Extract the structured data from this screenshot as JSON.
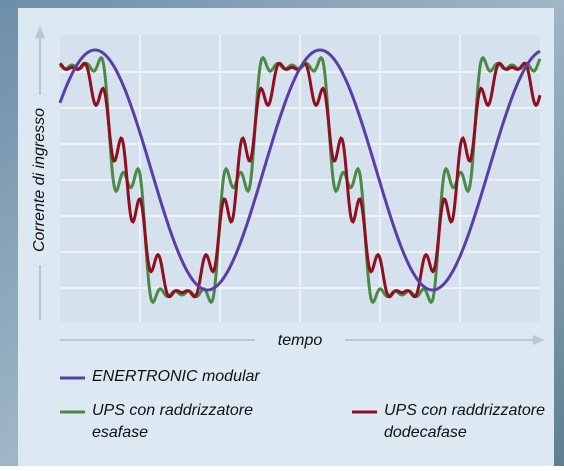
{
  "axes": {
    "x_label": "tempo",
    "y_label": "Corrente di ingresso"
  },
  "legend": [
    {
      "lines": [
        "ENERTRONIC modular"
      ],
      "color": "#5a3ea6"
    },
    {
      "lines": [
        "UPS con raddrizzatore",
        "esafase"
      ],
      "color": "#4b8a46"
    },
    {
      "lines": [
        "UPS con raddrizzatore",
        "dodecafase"
      ],
      "color": "#8e1020"
    }
  ]
}
